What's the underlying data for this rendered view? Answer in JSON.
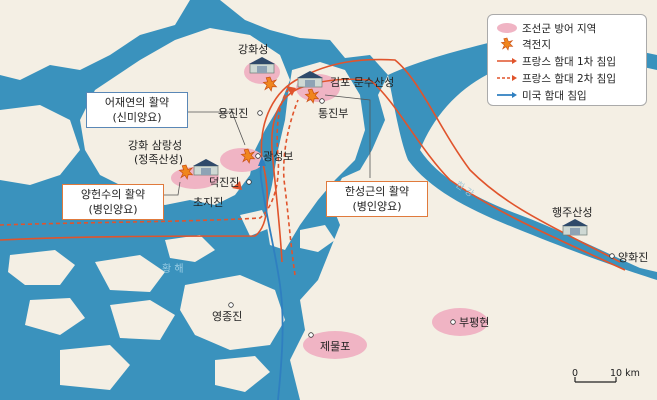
{
  "legend": {
    "defense_area": "조선군 방어 지역",
    "battle_site": "격전지",
    "french_1st": "프랑스 함대 1차 침입",
    "french_2nd": "프랑스 함대 2차 침입",
    "us_invasion": "미국 함대 침입"
  },
  "colors": {
    "sea": "#3a92bd",
    "land": "#f4efe4",
    "defense_area": "#f0b4c4",
    "french_route": "#e0542c",
    "us_route": "#2f7fc0",
    "battle_icon": "#f0861e"
  },
  "places": {
    "ganghwaseong": "강화성",
    "gimpo_munsu": "김포 문수산성",
    "tongjinbu": "통진부",
    "yongjinjin": "용진진",
    "gwangseongbo": "광성보",
    "deokjinjin": "덕진진",
    "chojijin": "초지진",
    "ganghwa_samnang": "강화 삼랑성\n(정족산성)",
    "haengjusanseong": "행주산성",
    "yanghwajin": "양화진",
    "yeongjongjin": "영종진",
    "jemulpo": "제물포",
    "bupyeonghyeon": "부평현"
  },
  "water": {
    "han_river": "한 강",
    "yellow_sea": "황 해"
  },
  "callouts": {
    "eo_jaeyeon": [
      "어재연의 활약",
      "(신미양요)"
    ],
    "yang_heonsu": [
      "양헌수의 활약",
      "(병인양요)"
    ],
    "han_seonggeun": [
      "한성근의 활약",
      "(병인양요)"
    ]
  },
  "scale": {
    "zero": "0",
    "ten": "10 km"
  },
  "icons": {
    "fortress": "fortress-icon",
    "battle": "battle-burst-icon",
    "place": "place-dot-icon"
  }
}
